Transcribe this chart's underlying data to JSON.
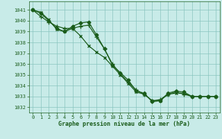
{
  "background_color": "#c8ebe8",
  "grid_color": "#88c4be",
  "line_color": "#1a5c1a",
  "xlabel": "Graphe pression niveau de la mer (hPa)",
  "xlim": [
    -0.5,
    23.5
  ],
  "ylim": [
    1031.5,
    1041.8
  ],
  "yticks": [
    1032,
    1033,
    1034,
    1035,
    1036,
    1037,
    1038,
    1039,
    1040,
    1041
  ],
  "xticks": [
    0,
    1,
    2,
    3,
    4,
    5,
    6,
    7,
    8,
    9,
    10,
    11,
    12,
    13,
    14,
    15,
    16,
    17,
    18,
    19,
    20,
    21,
    22,
    23
  ],
  "series1_x": [
    0,
    1,
    2,
    3,
    4,
    5,
    6,
    7,
    8,
    9,
    10,
    11,
    12,
    13,
    14,
    15,
    16,
    17,
    18,
    19,
    20,
    21,
    22,
    23
  ],
  "series1_y": [
    1041.0,
    1040.7,
    1040.0,
    1039.3,
    1039.0,
    1039.5,
    1039.8,
    1039.9,
    1038.7,
    1037.4,
    1035.9,
    1035.2,
    1034.5,
    1033.5,
    1033.3,
    1032.5,
    1032.6,
    1033.3,
    1033.5,
    1033.4,
    1033.0,
    1033.0,
    1033.0,
    1033.0
  ],
  "series2_x": [
    0,
    1,
    2,
    3,
    4,
    5,
    6,
    7,
    8,
    9,
    10,
    11,
    12,
    13,
    14,
    15,
    16,
    17,
    18,
    19,
    20,
    21,
    22,
    23
  ],
  "series2_y": [
    1041.0,
    1040.4,
    1039.9,
    1039.5,
    1039.3,
    1039.3,
    1039.5,
    1039.6,
    1038.5,
    1037.4,
    1036.0,
    1035.1,
    1034.3,
    1033.6,
    1033.2,
    1032.6,
    1032.7,
    1033.2,
    1033.4,
    1033.2,
    1033.0,
    1033.0,
    1033.0,
    1033.0
  ],
  "series3_x": [
    0,
    1,
    2,
    3,
    4,
    5,
    6,
    7,
    8,
    9,
    10,
    11,
    12,
    13,
    14,
    15,
    16,
    17,
    18,
    19,
    20,
    21,
    22,
    23
  ],
  "series3_y": [
    1041.0,
    1040.8,
    1040.1,
    1039.2,
    1039.0,
    1039.3,
    1038.6,
    1037.7,
    1037.1,
    1036.6,
    1035.8,
    1035.0,
    1034.2,
    1033.4,
    1033.2,
    1032.6,
    1032.6,
    1033.2,
    1033.3,
    1033.3,
    1033.0,
    1033.0,
    1033.0,
    1033.0
  ],
  "marker_size": 2.5,
  "line_width": 0.9,
  "tick_fontsize": 5.0,
  "xlabel_fontsize": 6.0
}
